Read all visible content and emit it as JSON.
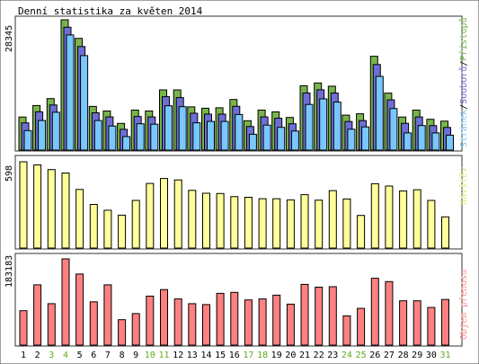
{
  "chart_data": {
    "type": "bar",
    "title": "Denní statistika za květen 2014",
    "days": [
      "1",
      "2",
      "3",
      "4",
      "5",
      "6",
      "7",
      "8",
      "9",
      "10",
      "11",
      "12",
      "13",
      "14",
      "15",
      "16",
      "17",
      "18",
      "19",
      "20",
      "21",
      "22",
      "23",
      "24",
      "25",
      "26",
      "27",
      "28",
      "29",
      "30",
      "31"
    ],
    "weekend_days": [
      "3",
      "4",
      "10",
      "11",
      "17",
      "18",
      "24",
      "25",
      "31"
    ],
    "panels": [
      {
        "name": "traffic",
        "label_parts": [
          "Stránek",
          "Souborů",
          "Přístupů"
        ],
        "max_label": "28345",
        "ymax": 28345,
        "series": [
          {
            "name": "Přístupů",
            "values": [
              7200,
              9700,
              11200,
              28345,
              24300,
              9500,
              8500,
              5800,
              8700,
              8500,
              13100,
              13100,
              9400,
              9100,
              9200,
              11000,
              6400,
              8700,
              8300,
              7100,
              14000,
              14600,
              13900,
              7600,
              7900,
              20400,
              12400,
              7200,
              8700,
              6700,
              6300
            ]
          },
          {
            "name": "Souborů",
            "values": [
              6700,
              9100,
              10600,
              27500,
              23300,
              8900,
              8000,
              5300,
              8100,
              8000,
              12400,
              12200,
              8800,
              8600,
              8600,
              10300,
              5900,
              8000,
              7700,
              6500,
              13200,
              13900,
              13200,
              7000,
              7200,
              19400,
              11700,
              6600,
              8000,
              6100,
              5700
            ]
          },
          {
            "name": "Stránek",
            "values": [
              5800,
              8000,
              9800,
              26600,
              22100,
              8000,
              6800,
              4500,
              7300,
              7200,
              11200,
              11000,
              7500,
              7800,
              7800,
              9300,
              5000,
              7000,
              6500,
              5700,
              11500,
              12700,
              12000,
              6100,
              6600,
              17600,
              10600,
              5300,
              6900,
              5300,
              4800
            ]
          }
        ]
      },
      {
        "name": "visits",
        "label": "Návštěv",
        "max_label": "598",
        "ymax": 598,
        "values": [
          598,
          576,
          544,
          520,
          406,
          302,
          262,
          228,
          330,
          448,
          482,
          472,
          400,
          380,
          378,
          356,
          352,
          342,
          342,
          334,
          370,
          332,
          398,
          340,
          226,
          446,
          430,
          396,
          404,
          330,
          216
        ]
      },
      {
        "name": "volume",
        "label": "Objem přenosu",
        "max_label": "183183",
        "ymax": 183183,
        "values": [
          73000,
          128000,
          88000,
          183183,
          151000,
          92000,
          128000,
          54000,
          67000,
          104000,
          118000,
          98000,
          88000,
          86000,
          110000,
          112000,
          96000,
          98000,
          106000,
          87000,
          129000,
          123000,
          124000,
          62000,
          78000,
          142000,
          135000,
          94000,
          94000,
          80000,
          97000
        ]
      }
    ],
    "colors": {
      "hits": "#78b44a",
      "files": "#6e6ed8",
      "pages": "#78c8ff",
      "visits": "#ffff99",
      "volume": "#ff8080",
      "weekday_label": "#000000",
      "weekend_label": "#66aa22"
    }
  }
}
